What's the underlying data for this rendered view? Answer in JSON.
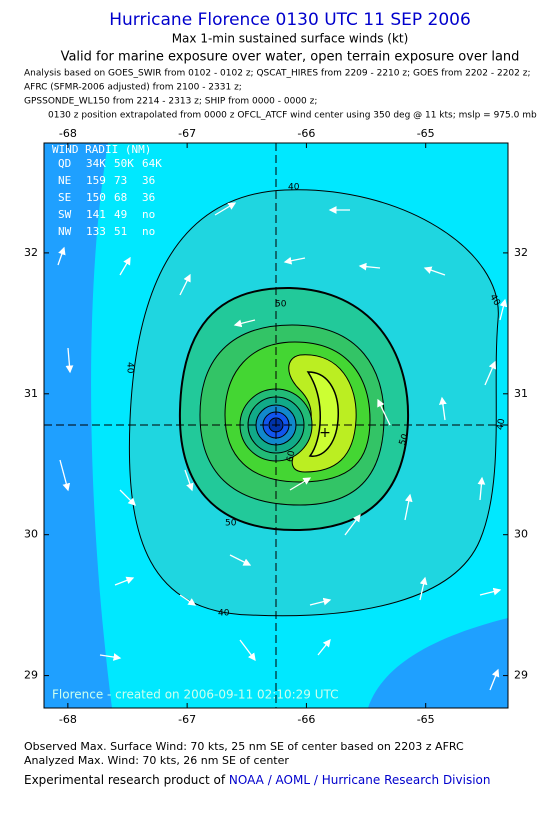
{
  "header": {
    "title": "Hurricane Florence 0130 UTC 11 SEP 2006",
    "subtitle": "Max 1-min sustained surface winds (kt)",
    "validity": "Valid for marine exposure over water, open terrain exposure over land",
    "analysis_lines": [
      "Analysis based on  GOES_SWIR from 0102 - 0102 z;  QSCAT_HIRES from 2209 - 2210 z;  GOES from 2202 - 2202 z;",
      "AFRC  (SFMR-2006 adjusted) from 2100 - 2331 z;",
      "GPSSONDE_WL150 from 2214 - 2313 z;  SHIP from 0000 - 0000 z;",
      "0130 z position extrapolated from 0000 z OFCL_ATCF wind center using 350 deg @ 11 kts; mslp = 975.0 mb"
    ]
  },
  "map": {
    "xlim": [
      -68.2,
      -64.31
    ],
    "ylim": [
      28.77,
      32.78
    ],
    "xticks": [
      -68,
      -67,
      -66,
      -65
    ],
    "yticks": [
      29,
      30,
      31,
      32
    ],
    "wind_radii": {
      "title": "WIND RADII (NM)",
      "rows": [
        [
          "QD",
          "34K",
          "50K",
          "64K"
        ],
        [
          "NE",
          "159",
          "73",
          "36"
        ],
        [
          "SE",
          "150",
          "68",
          "36"
        ],
        [
          "SW",
          "141",
          "49",
          "no"
        ],
        [
          "NW",
          "133",
          "51",
          "no"
        ]
      ]
    },
    "contour_labels": [
      "40",
      "40",
      "40",
      "40",
      "40",
      "50",
      "50",
      "50",
      "60"
    ],
    "watermark": "Florence - created on 2006-09-11 02:10:29 UTC"
  },
  "footer": {
    "observed": "Observed Max. Surface Wind: 70 kts, 25 nm SE of center based on 2203 z AFRC",
    "analyzed": "Analyzed Max. Wind: 70 kts, 26 nm SE of center",
    "credit": "Experimental research product of ",
    "link": "NOAA / AOML / Hurricane Research Division"
  }
}
